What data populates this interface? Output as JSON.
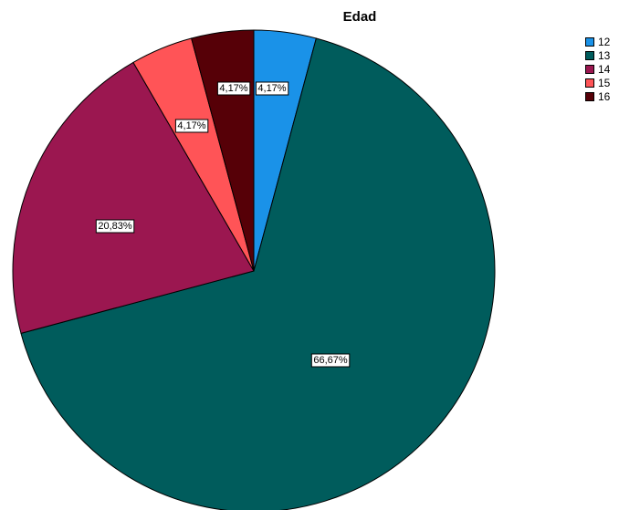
{
  "chart_data": {
    "type": "pie",
    "title": "Edad",
    "slices": [
      {
        "label": "12",
        "value": 4.17,
        "value_label": "4,17%",
        "color": "#1a92e8"
      },
      {
        "label": "13",
        "value": 66.67,
        "value_label": "66,67%",
        "color": "#005c5c"
      },
      {
        "label": "14",
        "value": 20.83,
        "value_label": "20,83%",
        "color": "#9b1750"
      },
      {
        "label": "15",
        "value": 4.17,
        "value_label": "4,17%",
        "color": "#ff5457"
      },
      {
        "label": "16",
        "value": 4.17,
        "value_label": "4,17%",
        "color": "#560007"
      }
    ],
    "legend_position": "top-right",
    "start_angle": "top",
    "direction": "clockwise"
  }
}
